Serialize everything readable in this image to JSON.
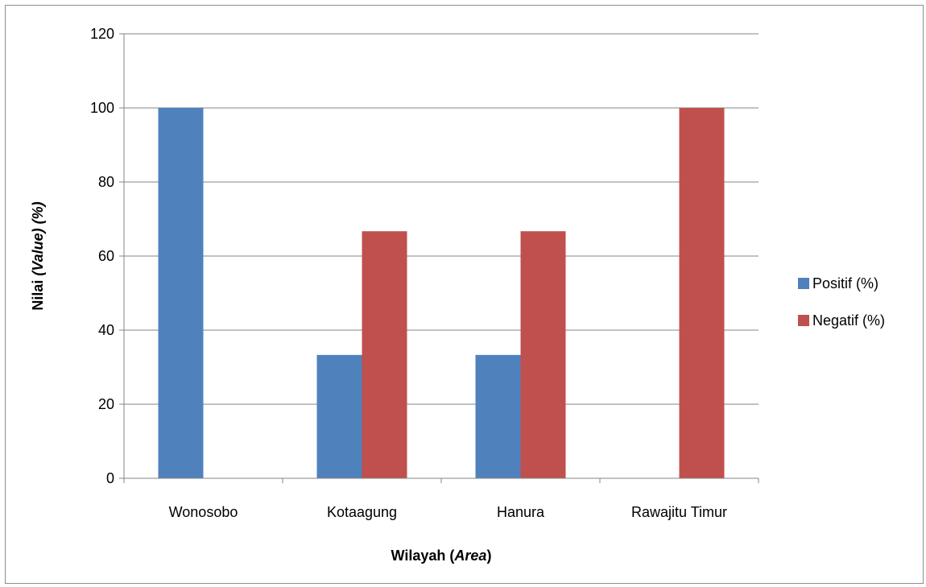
{
  "chart_data": {
    "type": "bar",
    "categories": [
      "Wonosobo",
      "Kotaagung",
      "Hanura",
      "Rawajitu Timur"
    ],
    "series": [
      {
        "name": "Positif (%)",
        "values": [
          100,
          33.3,
          33.3,
          0
        ],
        "color": "#4f81bd"
      },
      {
        "name": "Negatif (%)",
        "values": [
          0,
          66.7,
          66.7,
          100
        ],
        "color": "#c0504d"
      }
    ],
    "ylim": [
      0,
      120
    ],
    "yticks": [
      0,
      20,
      40,
      60,
      80,
      100,
      120
    ],
    "xlabel_parts": [
      {
        "text": "Wilayah (",
        "italic": false
      },
      {
        "text": "Area",
        "italic": true
      },
      {
        "text": ")",
        "italic": false
      }
    ],
    "ylabel_parts": [
      {
        "text": "Nilai ",
        "italic": false
      },
      {
        "text": "(Value) (%)",
        "italic": true
      }
    ],
    "grid": true,
    "legend_position": "right"
  }
}
